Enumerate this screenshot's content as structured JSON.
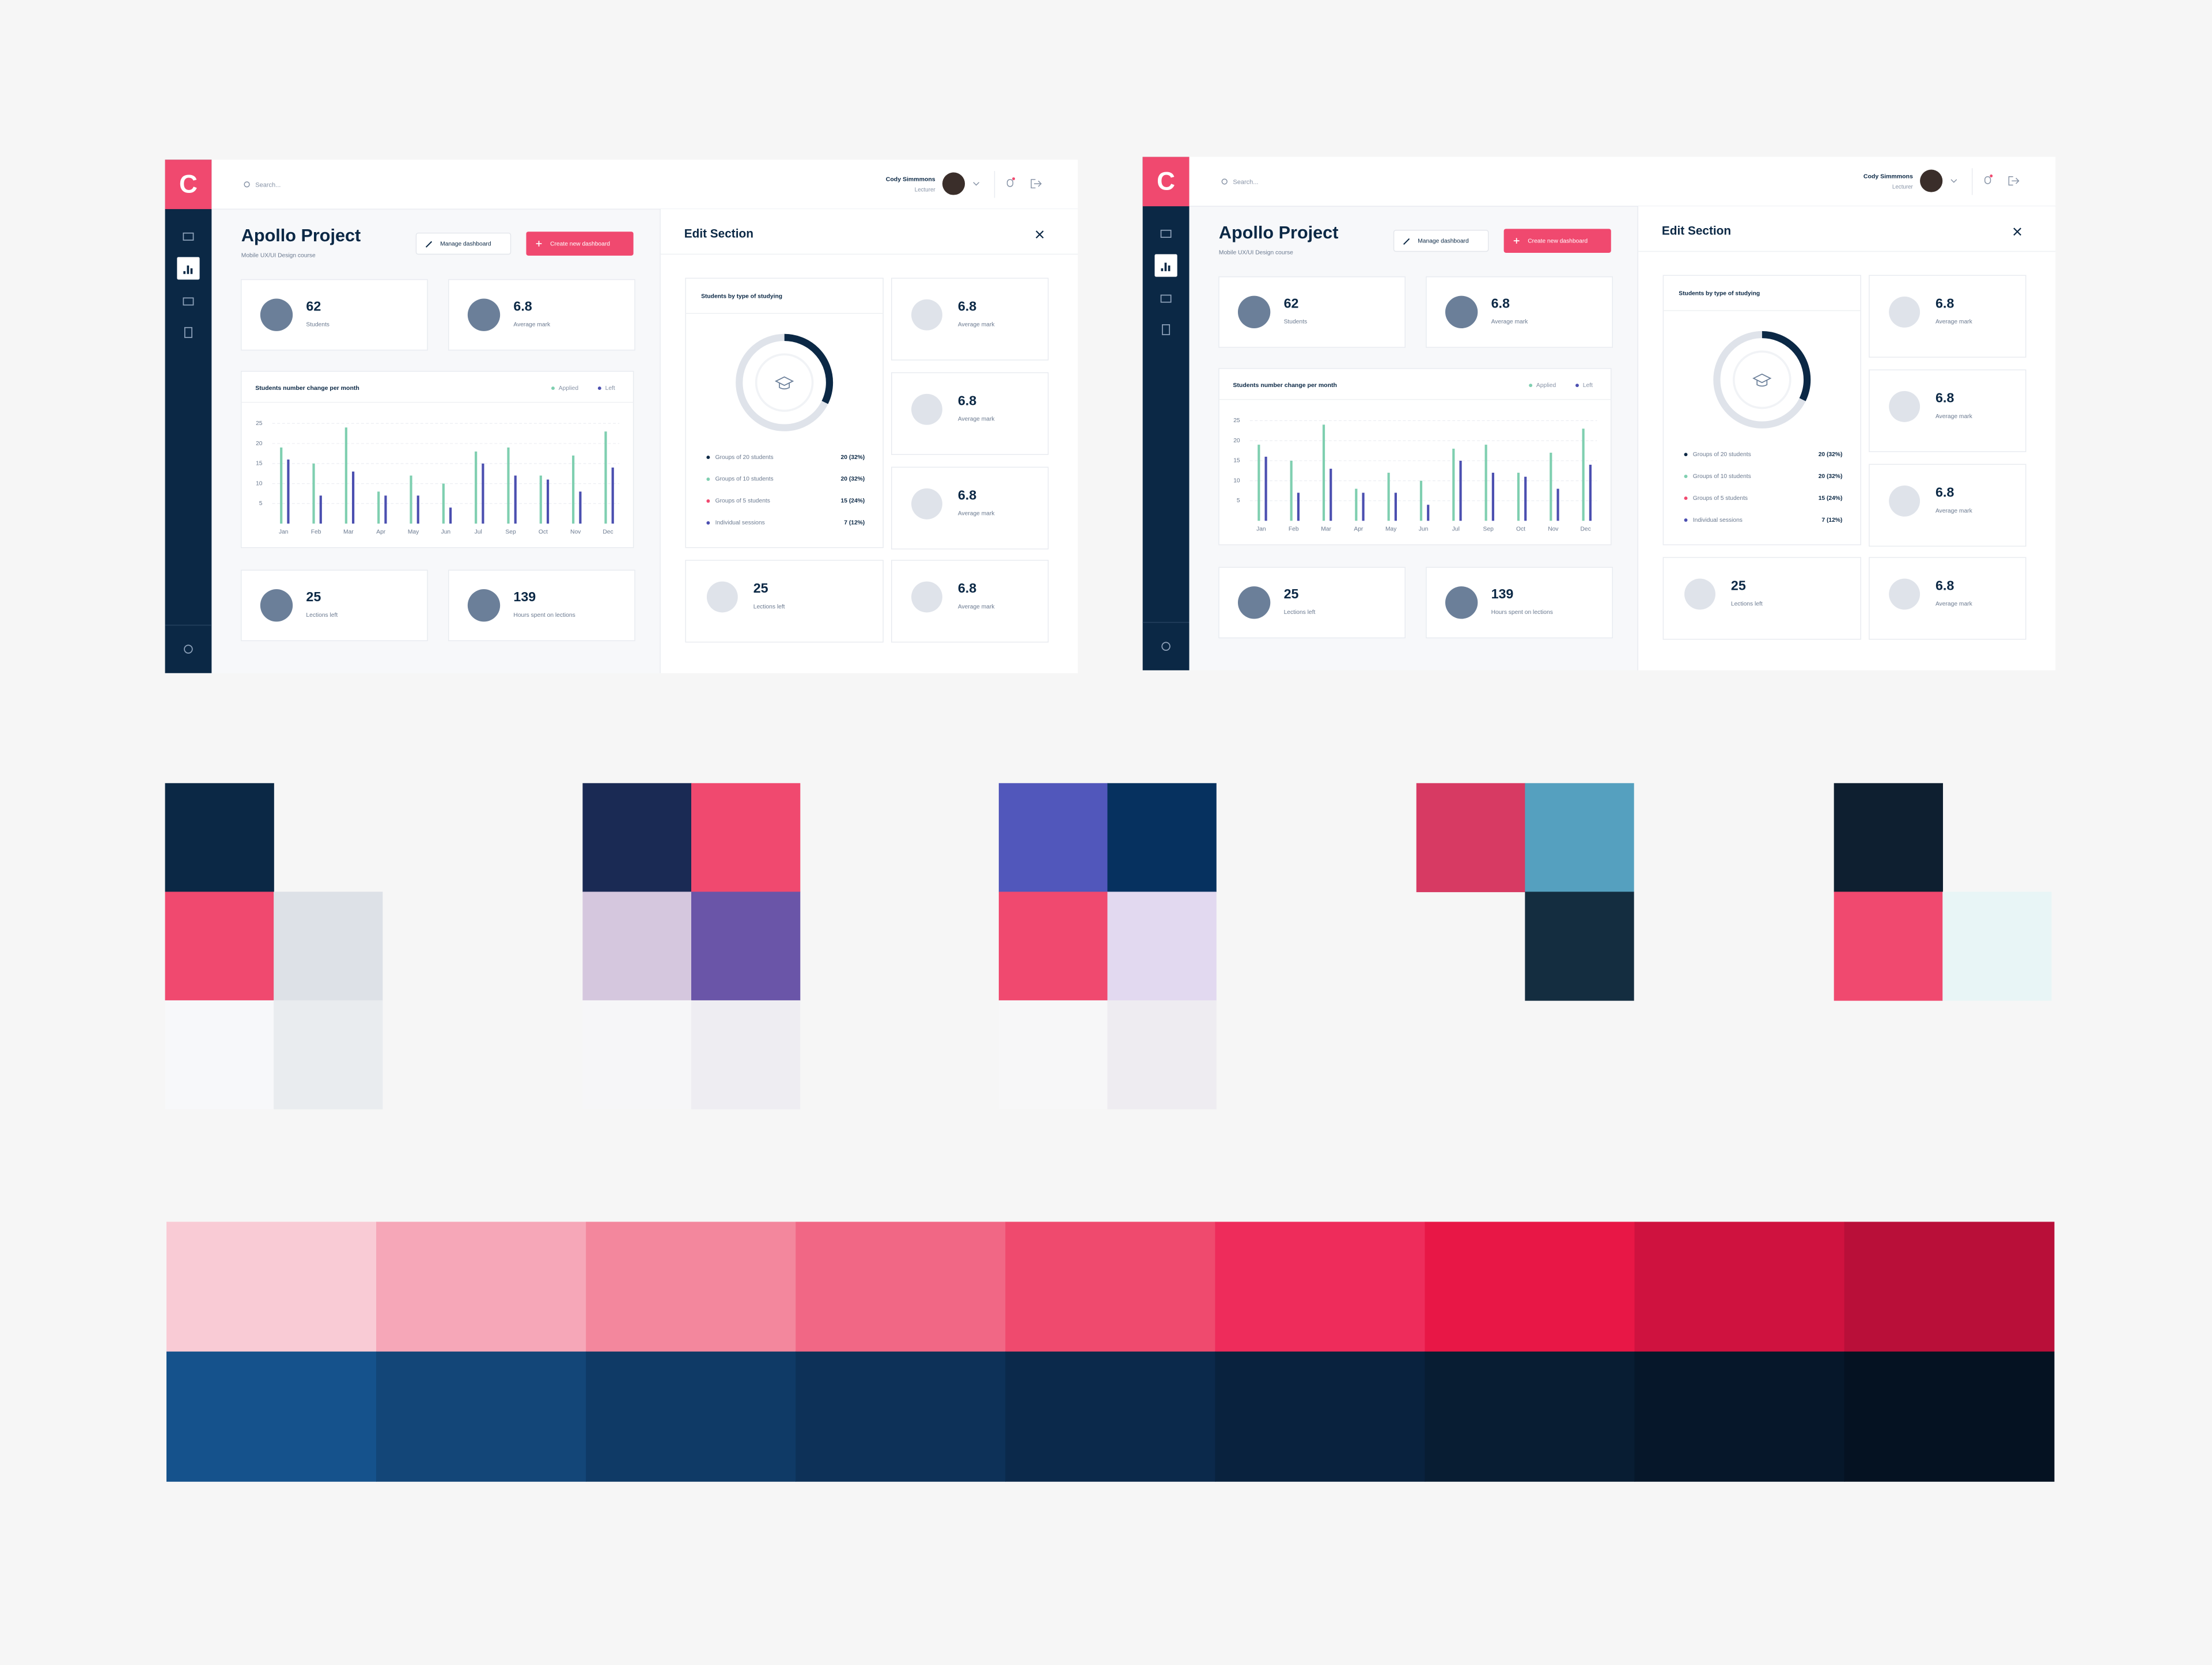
{
  "dashboard": {
    "logo": "C",
    "search": "Search...",
    "user": {
      "name": "Cody Simmmons",
      "role": "Lecturer"
    },
    "title": "Apollo Project",
    "subtitle": "Mobile UX/UI Design course",
    "buttons": {
      "manage": "Manage dashboard",
      "create": "Create new dashboard"
    },
    "stats": [
      {
        "value": 62,
        "label": "Students"
      },
      {
        "value": 6.8,
        "label": "Average mark"
      },
      {
        "value": 25,
        "label": "Lections left"
      },
      {
        "value": 139,
        "label": "Hours spent on lections"
      }
    ],
    "chart_data": {
      "type": "bar",
      "title": "Students number change per month",
      "categories": [
        "Jan",
        "Feb",
        "Mar",
        "Apr",
        "May",
        "Jun",
        "Jul",
        "Sep",
        "Oct",
        "Nov",
        "Dec"
      ],
      "series": [
        {
          "name": "Applied",
          "color": "#7fcfb0",
          "values": [
            19,
            15,
            24,
            8,
            12,
            10,
            18,
            19,
            12,
            17,
            23
          ]
        },
        {
          "name": "Left",
          "color": "#4b4fb0",
          "values": [
            16,
            7,
            13,
            7,
            7,
            4,
            15,
            12,
            11,
            8,
            14
          ]
        }
      ],
      "ylim": [
        0,
        25
      ],
      "yticks": [
        5,
        10,
        15,
        20,
        25
      ],
      "grid": true
    },
    "edit_section": {
      "title": "Edit Section",
      "donut": {
        "title": "Students by type of studying",
        "items": [
          {
            "label": "Groups of 20 students",
            "value": 20,
            "value_label": "20 (32%)",
            "color": "#0b2845",
            "arc_color": "#0b2845"
          },
          {
            "label": "Groups of 10 students",
            "value": 20,
            "value_label": "20 (32%)",
            "color": "#7fcfb0",
            "arc_color": "#dfe3ea"
          },
          {
            "label": "Groups of 5 students",
            "value": 15,
            "value_label": "15 (24%)",
            "color": "#f0496f",
            "arc_color": "#dfe3ea"
          },
          {
            "label": "Individual sessions",
            "value": 7,
            "value_label": "7 (12%)",
            "color": "#4b4fb0",
            "arc_color": "#dfe3ea"
          }
        ]
      },
      "cards": [
        {
          "value": 6.8,
          "label": "Average mark"
        },
        {
          "value": 6.8,
          "label": "Average mark"
        },
        {
          "value": 6.8,
          "label": "Average mark"
        },
        {
          "value": 6.8,
          "label": "Average mark"
        }
      ],
      "left_card": {
        "value": 25,
        "label": "Lections left"
      }
    }
  },
  "palettes": [
    [
      [
        "#0b2845",
        null
      ],
      [
        "#f0496f",
        "#dde1e7"
      ],
      [
        "#f7f8fa",
        "#e9ecef"
      ]
    ],
    [
      [
        "#1a2a54",
        "#f0496f"
      ],
      [
        "#d5c7de",
        "#6a55a8"
      ],
      [
        "#f6f6f8",
        "#eeedf2"
      ]
    ],
    [
      [
        "#5157bb",
        "#06315f"
      ],
      [
        "#f0496f",
        "#e2d9f0"
      ],
      [
        "#f7f7f8",
        "#eeecf1"
      ]
    ],
    [
      [
        "#d73a63",
        "#55a0bf"
      ],
      [
        null,
        "#142d40"
      ]
    ],
    [
      [
        "#0e1f30",
        null
      ],
      [
        "#f0496f",
        "#e8f5f6"
      ]
    ]
  ],
  "scales": [
    [
      "#f9cbd5",
      "#f6a7b8",
      "#f3879d",
      "#f16785",
      "#ef4a6e",
      "#ee2c5b",
      "#e81746",
      "#cf123f",
      "#b90f39"
    ],
    [
      "#15528c",
      "#134678",
      "#0f3a66",
      "#0d3158",
      "#0b294b",
      "#09223e",
      "#081d33",
      "#06172a",
      "#051222"
    ]
  ]
}
